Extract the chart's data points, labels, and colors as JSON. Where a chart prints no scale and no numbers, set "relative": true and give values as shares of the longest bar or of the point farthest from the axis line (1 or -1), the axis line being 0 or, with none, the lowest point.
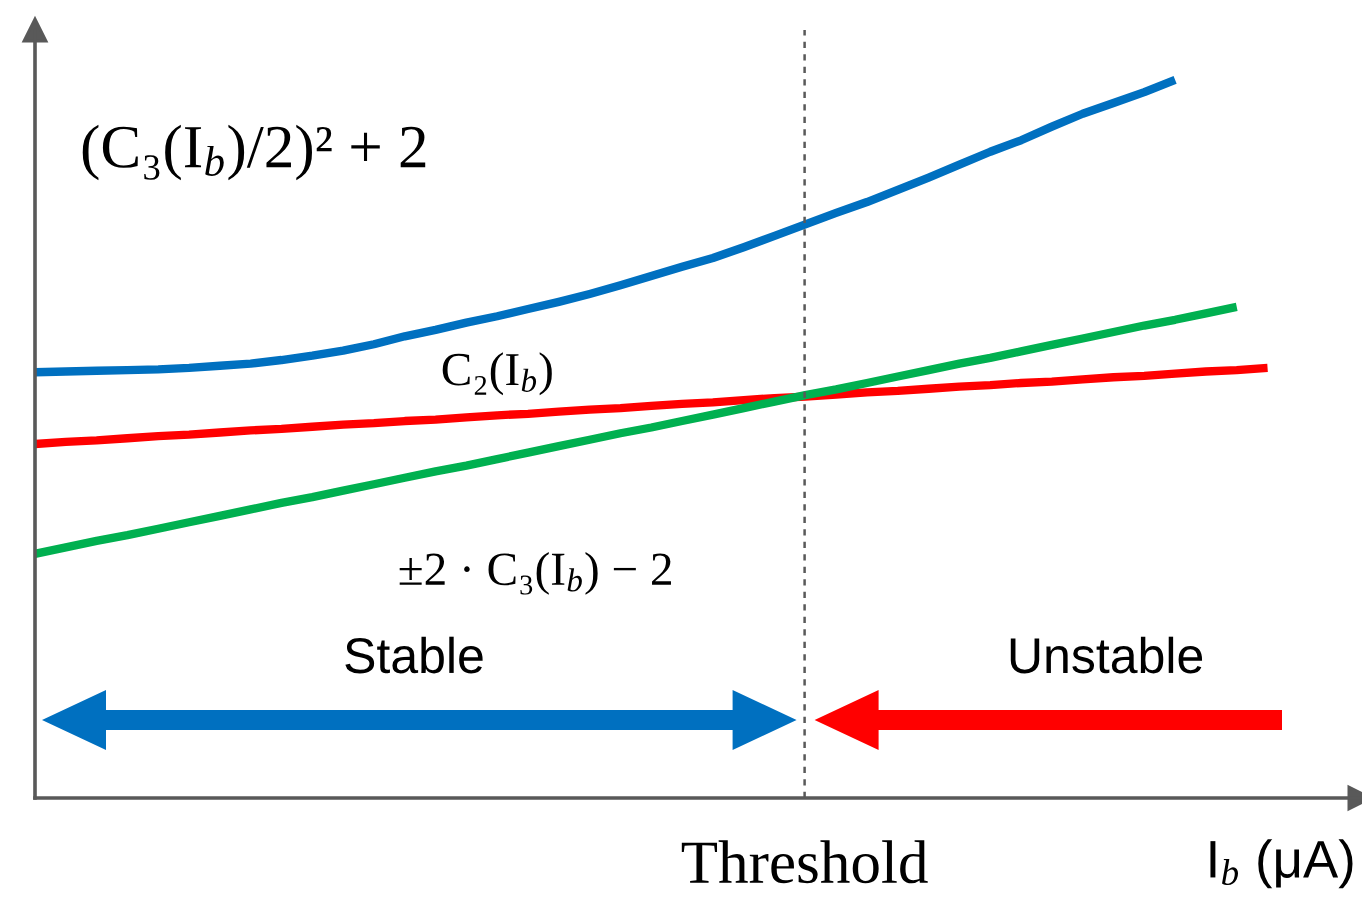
{
  "chart_data": {
    "type": "line",
    "relative": true,
    "categories": [
      null,
      null,
      null,
      null,
      null,
      null,
      null,
      null,
      null,
      null,
      null,
      null,
      null,
      null,
      null,
      null,
      null,
      null,
      null,
      null,
      null,
      null,
      null,
      null,
      null,
      null,
      null,
      null,
      null,
      null,
      null,
      null,
      null,
      null,
      null,
      null,
      null,
      null,
      null,
      null,
      null,
      null,
      null,
      null
    ],
    "series": [
      {
        "name": "(C₃(I$_{b}$)/2)² + 2",
        "color": "#0070c0",
        "values": [
          0.593,
          0.594,
          0.595,
          0.596,
          0.597,
          0.599,
          0.602,
          0.605,
          0.61,
          0.616,
          0.623,
          0.632,
          0.643,
          0.652,
          0.662,
          0.671,
          0.681,
          0.691,
          0.702,
          0.714,
          0.727,
          0.74,
          0.752,
          0.767,
          0.783,
          0.799,
          0.815,
          0.83,
          0.847,
          0.864,
          0.882,
          0.9,
          0.916,
          0.935,
          0.953,
          0.968,
          0.983,
          1.0,
          null,
          null,
          null,
          null,
          null,
          null
        ]
      },
      {
        "name": "C₂(I$_{b}$)",
        "color": "#ff0000",
        "values": [
          0.493,
          0.496,
          0.498,
          0.501,
          0.504,
          0.506,
          0.509,
          0.512,
          0.514,
          0.517,
          0.52,
          0.522,
          0.525,
          0.527,
          0.53,
          0.533,
          0.535,
          0.538,
          0.541,
          0.543,
          0.546,
          0.549,
          0.551,
          0.554,
          0.557,
          0.559,
          0.562,
          0.565,
          0.567,
          0.57,
          0.573,
          0.575,
          0.578,
          0.58,
          0.583,
          0.586,
          0.588,
          0.591,
          0.594,
          0.596,
          0.599,
          null,
          null,
          null
        ]
      },
      {
        "name": "±2 · C₃(I$_{b}$) − 2",
        "color": "#00b050",
        "values": [
          0.34,
          0.349,
          0.358,
          0.366,
          0.375,
          0.384,
          0.393,
          0.402,
          0.411,
          0.419,
          0.428,
          0.437,
          0.446,
          0.455,
          0.463,
          0.472,
          0.481,
          0.49,
          0.499,
          0.508,
          0.516,
          0.525,
          0.534,
          0.543,
          0.552,
          0.561,
          0.569,
          0.578,
          0.587,
          0.596,
          0.605,
          0.613,
          0.622,
          0.631,
          0.64,
          0.649,
          0.658,
          0.666,
          0.675,
          0.684,
          null,
          null,
          null,
          null
        ]
      }
    ],
    "xlabel": "I$_{b}$ (μA)",
    "annotations": [
      "Stable",
      "Unstable",
      "Threshold"
    ]
  }
}
